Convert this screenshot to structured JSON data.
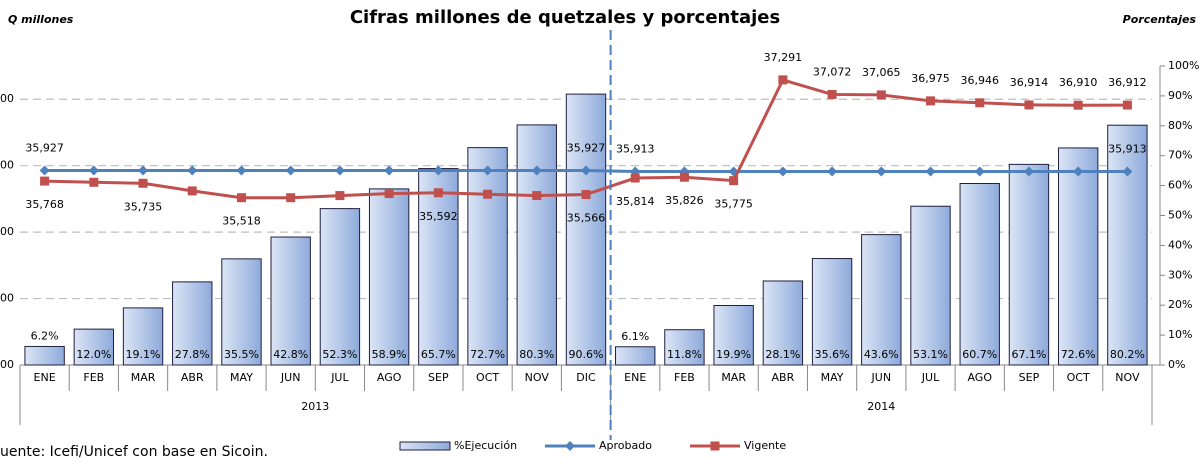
{
  "chart_data": {
    "type": "bar_line",
    "title": "Cifras millones de quetzales y porcentajes",
    "y_label": "Q millones",
    "y2_label": "Porcentajes",
    "source": "uente: Icefi/Unicef con base en Sicoin.",
    "categories": [
      "ENE",
      "FEB",
      "MAR",
      "ABR",
      "MAY",
      "JUN",
      "JUL",
      "AGO",
      "SEP",
      "OCT",
      "NOV",
      "DIC",
      "ENE",
      "FEB",
      "MAR",
      "ABR",
      "MAY",
      "JUN",
      "JUL",
      "AGO",
      "SEP",
      "OCT",
      "NOV"
    ],
    "groups": [
      {
        "name": "2013",
        "count": 12
      },
      {
        "name": "2014",
        "count": 11
      }
    ],
    "ylim": [
      33000,
      37500
    ],
    "yticks": [
      {
        "value": 33000,
        "label": "00"
      },
      {
        "value": 34000,
        "label": "00"
      },
      {
        "value": 35000,
        "label": "00"
      },
      {
        "value": 36000,
        "label": "00"
      },
      {
        "value": 37000,
        "label": "00"
      }
    ],
    "y2lim": [
      0,
      100
    ],
    "y2ticks": [
      {
        "value": 0,
        "label": "0%"
      },
      {
        "value": 10,
        "label": "10%"
      },
      {
        "value": 20,
        "label": "20%"
      },
      {
        "value": 30,
        "label": "30%"
      },
      {
        "value": 40,
        "label": "40%"
      },
      {
        "value": 50,
        "label": "50%"
      },
      {
        "value": 60,
        "label": "60%"
      },
      {
        "value": 70,
        "label": "70%"
      },
      {
        "value": 80,
        "label": "80%"
      },
      {
        "value": 90,
        "label": "90%"
      },
      {
        "value": 100,
        "label": "100%"
      }
    ],
    "grid": true,
    "series": [
      {
        "name": "%Ejecución",
        "kind": "bar",
        "axis": "y2",
        "color": "#8eaadb",
        "values": [
          6.2,
          12.0,
          19.1,
          27.8,
          35.5,
          42.8,
          52.3,
          58.9,
          65.7,
          72.7,
          80.3,
          90.6,
          6.1,
          11.8,
          19.9,
          28.1,
          35.6,
          43.6,
          53.1,
          60.7,
          67.1,
          72.6,
          80.2
        ],
        "value_labels": [
          "6.2%",
          "12.0%",
          "19.1%",
          "27.8%",
          "35.5%",
          "42.8%",
          "52.3%",
          "58.9%",
          "65.7%",
          "72.7%",
          "80.3%",
          "90.6%",
          "6.1%",
          "11.8%",
          "19.9%",
          "28.1%",
          "35.6%",
          "43.6%",
          "53.1%",
          "60.7%",
          "67.1%",
          "72.6%",
          "80.2%"
        ]
      },
      {
        "name": "Aprobado",
        "kind": "line",
        "color": "#4f81bd",
        "values": [
          35927,
          35927,
          35927,
          35927,
          35927,
          35927,
          35927,
          35927,
          35927,
          35927,
          35927,
          35927,
          35913,
          35913,
          35913,
          35913,
          35913,
          35913,
          35913,
          35913,
          35913,
          35913,
          35913
        ],
        "value_labels": [
          "35,927",
          null,
          null,
          null,
          null,
          null,
          null,
          null,
          null,
          null,
          null,
          "35,927",
          "35,913",
          null,
          null,
          null,
          null,
          null,
          null,
          null,
          null,
          null,
          "35,913"
        ]
      },
      {
        "name": "Vigente",
        "kind": "line",
        "color": "#c0504d",
        "values": [
          35768,
          35750,
          35735,
          35620,
          35518,
          35518,
          35550,
          35580,
          35592,
          35570,
          35550,
          35566,
          35814,
          35826,
          35775,
          37291,
          37072,
          37065,
          36975,
          36946,
          36914,
          36910,
          36912
        ],
        "value_labels": [
          "35,768",
          null,
          "35,735",
          null,
          "35,518",
          null,
          null,
          null,
          "35,592",
          null,
          null,
          "35,566",
          "35,814",
          "35,826",
          "35,775",
          "37,291",
          "37,072",
          "37,065",
          "36,975",
          "36,946",
          "36,914",
          "36,910",
          "36,912"
        ]
      }
    ],
    "legend": "bottom"
  }
}
